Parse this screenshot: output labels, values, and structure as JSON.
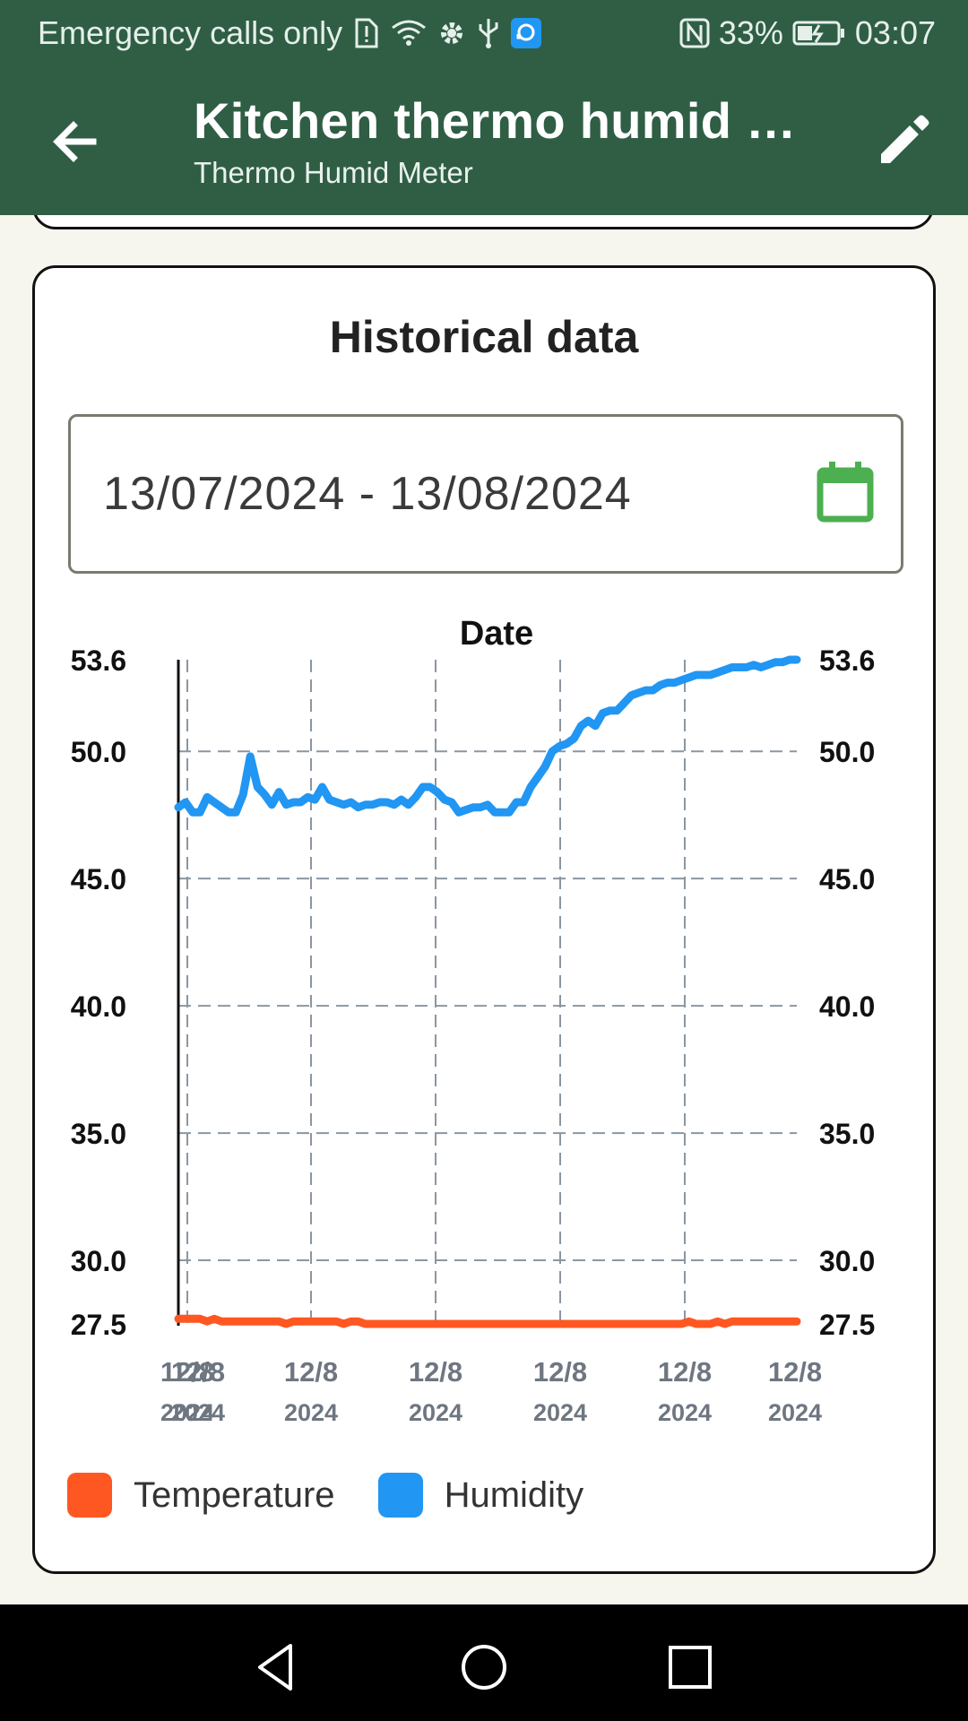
{
  "status_bar": {
    "carrier_text": "Emergency calls only",
    "battery_percent": "33%",
    "time": "03:07",
    "icons": [
      "sim-alert-icon",
      "wifi-icon",
      "gear-icon",
      "usb-icon",
      "support-app-icon",
      "nfc-icon",
      "battery-charging-icon"
    ]
  },
  "app_bar": {
    "title": "Kitchen thermo humid …",
    "subtitle": "Thermo Humid Meter",
    "back_icon": "arrow-back-icon",
    "edit_icon": "pencil-icon"
  },
  "historical": {
    "title": "Historical data",
    "date_range": "13/07/2024 - 13/08/2024",
    "calendar_icon": "calendar-icon"
  },
  "legend": [
    {
      "label": "Temperature",
      "color": "#FF5722"
    },
    {
      "label": "Humidity",
      "color": "#2196F3"
    }
  ],
  "colors": {
    "app_bar": "#2F5E45",
    "background": "#F6F6EE",
    "calendar_icon": "#4CAF50",
    "temperature": "#FF5722",
    "humidity": "#2196F3"
  },
  "chart_data": {
    "type": "line",
    "xlabel": "Date",
    "ylabel": "",
    "ylim": [
      27.5,
      53.6
    ],
    "y_ticks": [
      "53.6",
      "50.0",
      "45.0",
      "40.0",
      "35.0",
      "30.0",
      "27.5"
    ],
    "y_tick_values": [
      53.6,
      50.0,
      45.0,
      40.0,
      35.0,
      30.0,
      27.5
    ],
    "x_tick_labels": [
      {
        "date": "12/8",
        "year": "2024"
      },
      {
        "date": "12/8",
        "year": "2024"
      },
      {
        "date": "12/8",
        "year": "2024"
      },
      {
        "date": "12/8",
        "year": "2024"
      },
      {
        "date": "12/8",
        "year": "2024"
      },
      {
        "date": "12/8",
        "year": "2024"
      },
      {
        "date": "12/8",
        "year": "2024"
      }
    ],
    "grid": true,
    "legend_position": "bottom-left",
    "series": [
      {
        "name": "Humidity",
        "color": "#2196F3",
        "values": [
          47.8,
          48.0,
          47.6,
          47.6,
          48.2,
          48.0,
          47.8,
          47.6,
          47.6,
          48.3,
          49.8,
          48.6,
          48.3,
          47.9,
          48.4,
          47.9,
          48.0,
          48.0,
          48.2,
          48.1,
          48.6,
          48.1,
          48.0,
          47.9,
          48.0,
          47.8,
          47.9,
          47.9,
          48.0,
          48.0,
          47.9,
          48.1,
          47.9,
          48.2,
          48.6,
          48.6,
          48.4,
          48.1,
          48.0,
          47.6,
          47.7,
          47.8,
          47.8,
          47.9,
          47.6,
          47.6,
          47.6,
          48.0,
          48.0,
          48.6,
          49.0,
          49.4,
          50.0,
          50.2,
          50.3,
          50.5,
          51.0,
          51.2,
          51.0,
          51.5,
          51.6,
          51.6,
          51.9,
          52.2,
          52.3,
          52.4,
          52.4,
          52.6,
          52.7,
          52.7,
          52.8,
          52.9,
          53.0,
          53.0,
          53.0,
          53.1,
          53.2,
          53.3,
          53.3,
          53.3,
          53.4,
          53.3,
          53.4,
          53.5,
          53.5,
          53.6,
          53.6
        ]
      },
      {
        "name": "Temperature",
        "color": "#FF5722",
        "values": [
          27.7,
          27.7,
          27.7,
          27.7,
          27.6,
          27.7,
          27.6,
          27.6,
          27.6,
          27.6,
          27.6,
          27.6,
          27.6,
          27.6,
          27.6,
          27.5,
          27.6,
          27.6,
          27.6,
          27.6,
          27.6,
          27.6,
          27.6,
          27.5,
          27.6,
          27.6,
          27.5,
          27.5,
          27.5,
          27.5,
          27.5,
          27.5,
          27.5,
          27.5,
          27.5,
          27.5,
          27.5,
          27.5,
          27.5,
          27.5,
          27.5,
          27.5,
          27.5,
          27.5,
          27.5,
          27.5,
          27.5,
          27.5,
          27.5,
          27.5,
          27.5,
          27.5,
          27.5,
          27.5,
          27.5,
          27.5,
          27.5,
          27.5,
          27.5,
          27.5,
          27.5,
          27.5,
          27.5,
          27.5,
          27.5,
          27.5,
          27.5,
          27.5,
          27.5,
          27.5,
          27.5,
          27.6,
          27.5,
          27.5,
          27.5,
          27.6,
          27.5,
          27.6,
          27.6,
          27.6,
          27.6,
          27.6,
          27.6,
          27.6,
          27.6,
          27.6,
          27.6
        ]
      }
    ]
  },
  "nav_bar": {
    "back_icon": "nav-back-icon",
    "home_icon": "nav-home-icon",
    "recents_icon": "nav-recents-icon"
  }
}
